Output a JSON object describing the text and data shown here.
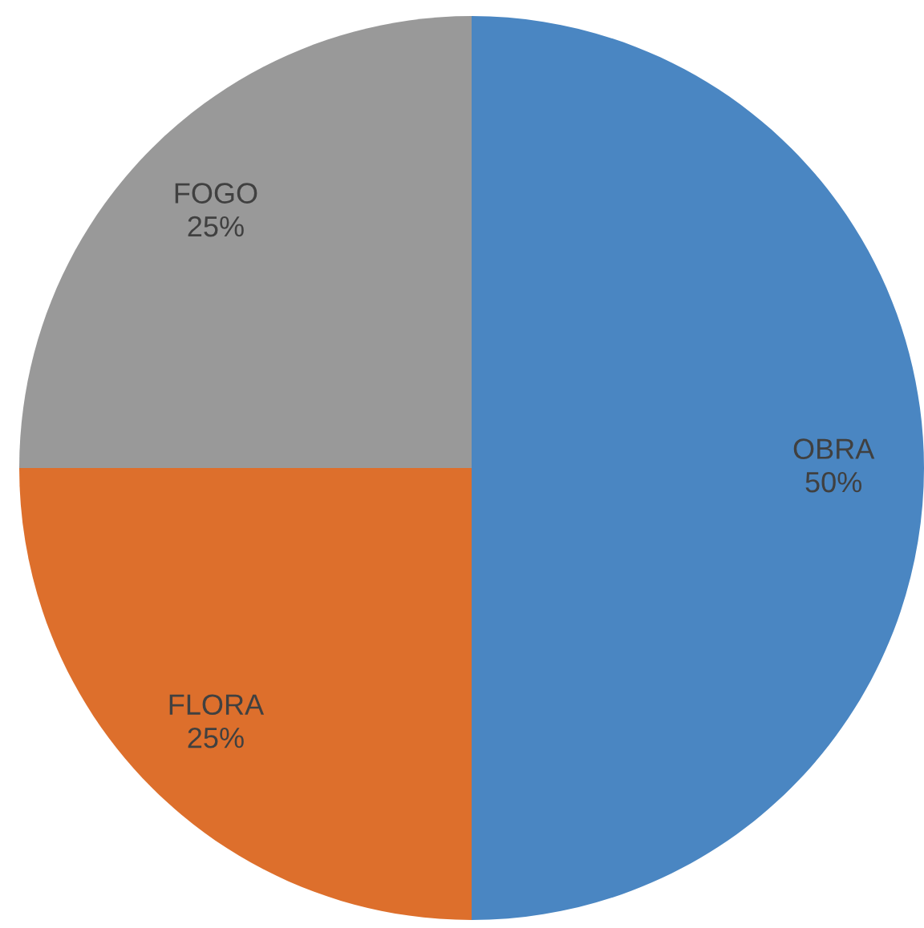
{
  "chart_data": {
    "type": "pie",
    "categories": [
      "OBRA",
      "FLORA",
      "FOGO"
    ],
    "values": [
      50,
      25,
      25
    ],
    "colors": [
      "#4a86c2",
      "#dd6f2c",
      "#999999"
    ],
    "value_labels": [
      "50%",
      "25%",
      "25%"
    ],
    "legend": false
  }
}
